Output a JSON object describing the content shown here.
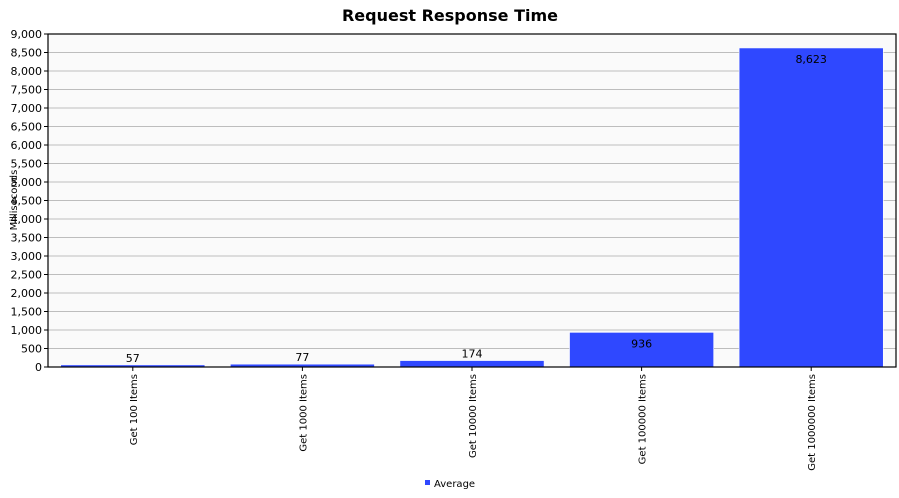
{
  "chart_data": {
    "type": "bar",
    "title": "Request Response Time",
    "ylabel": "Milliseconds",
    "xlabel": "",
    "ylim": [
      0,
      9000
    ],
    "ytick_step": 500,
    "grid": true,
    "legend_position": "bottom",
    "categories": [
      "Get 100 Items",
      "Get 1000 Items",
      "Get 10000 Items",
      "Get 100000 Items",
      "Get 1000000 Items"
    ],
    "series": [
      {
        "name": "Average",
        "values": [
          57,
          77,
          174,
          936,
          8623
        ],
        "color": "#2f48ff"
      }
    ],
    "data_labels": [
      "57",
      "77",
      "174",
      "936",
      "8,623"
    ]
  }
}
